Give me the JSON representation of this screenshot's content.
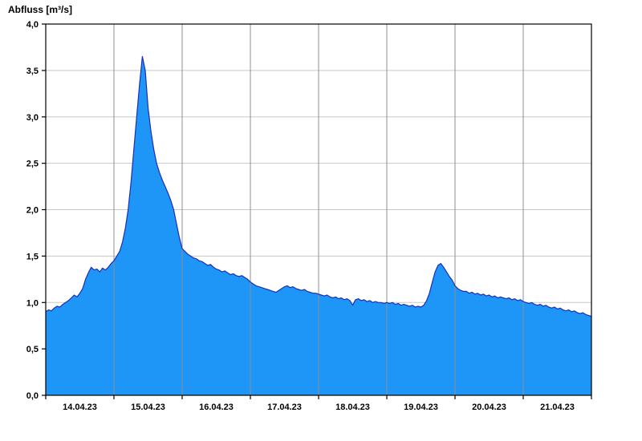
{
  "chart_data": {
    "type": "area",
    "title": "Abfluss [m³/s]",
    "ylabel": "Abfluss [m³/s]",
    "unit": "m³/s",
    "ylim": [
      0,
      4
    ],
    "y_tick_labels": [
      "0,0",
      "0,5",
      "1,0",
      "1,5",
      "2,0",
      "2,5",
      "3,0",
      "3,5",
      "4,0"
    ],
    "y_tick_values": [
      0,
      0.5,
      1.0,
      1.5,
      2.0,
      2.5,
      3.0,
      3.5,
      4.0
    ],
    "x_tick_labels": [
      "14.04.23",
      "15.04.23",
      "16.04.23",
      "17.04.23",
      "18.04.23",
      "19.04.23",
      "20.04.23",
      "21.04.23"
    ],
    "x_range_days": [
      0,
      8
    ],
    "series_start": "14.04.23 00:00",
    "series_step_hours": 1,
    "grid": true,
    "legend_position": "none",
    "fill_color": "#1e96f7",
    "line_color": "#1f2db4",
    "grid_color": "#c8c8c8",
    "day_divider_color": "#8f8f8f",
    "axis_color": "#000000",
    "values": [
      0.9,
      0.92,
      0.91,
      0.94,
      0.96,
      0.95,
      0.98,
      1.0,
      1.02,
      1.05,
      1.08,
      1.06,
      1.1,
      1.15,
      1.25,
      1.32,
      1.38,
      1.35,
      1.36,
      1.33,
      1.37,
      1.35,
      1.38,
      1.42,
      1.45,
      1.5,
      1.55,
      1.65,
      1.8,
      2.0,
      2.3,
      2.65,
      3.0,
      3.35,
      3.65,
      3.5,
      3.1,
      2.85,
      2.65,
      2.5,
      2.4,
      2.32,
      2.25,
      2.18,
      2.1,
      2.0,
      1.85,
      1.7,
      1.58,
      1.55,
      1.52,
      1.5,
      1.48,
      1.47,
      1.45,
      1.44,
      1.42,
      1.4,
      1.41,
      1.38,
      1.36,
      1.35,
      1.33,
      1.34,
      1.32,
      1.3,
      1.31,
      1.29,
      1.28,
      1.29,
      1.27,
      1.25,
      1.22,
      1.2,
      1.18,
      1.17,
      1.16,
      1.15,
      1.14,
      1.13,
      1.12,
      1.11,
      1.13,
      1.15,
      1.17,
      1.18,
      1.16,
      1.17,
      1.15,
      1.14,
      1.13,
      1.14,
      1.12,
      1.11,
      1.1,
      1.1,
      1.09,
      1.08,
      1.07,
      1.08,
      1.06,
      1.05,
      1.06,
      1.04,
      1.05,
      1.03,
      1.04,
      1.02,
      0.97,
      1.03,
      1.04,
      1.02,
      1.03,
      1.01,
      1.02,
      1.0,
      1.01,
      1.0,
      1.0,
      0.99,
      1.0,
      0.99,
      1.0,
      0.98,
      0.99,
      0.97,
      0.98,
      0.97,
      0.96,
      0.97,
      0.95,
      0.96,
      0.95,
      0.97,
      1.02,
      1.1,
      1.22,
      1.33,
      1.4,
      1.42,
      1.38,
      1.33,
      1.28,
      1.24,
      1.18,
      1.15,
      1.13,
      1.12,
      1.12,
      1.1,
      1.11,
      1.09,
      1.1,
      1.08,
      1.09,
      1.07,
      1.08,
      1.06,
      1.07,
      1.05,
      1.06,
      1.05,
      1.04,
      1.05,
      1.03,
      1.04,
      1.02,
      1.03,
      1.01,
      1.0,
      0.99,
      1.0,
      0.98,
      0.97,
      0.98,
      0.96,
      0.97,
      0.95,
      0.94,
      0.95,
      0.93,
      0.94,
      0.92,
      0.91,
      0.92,
      0.9,
      0.91,
      0.89,
      0.88,
      0.89,
      0.87,
      0.86,
      0.85
    ]
  }
}
